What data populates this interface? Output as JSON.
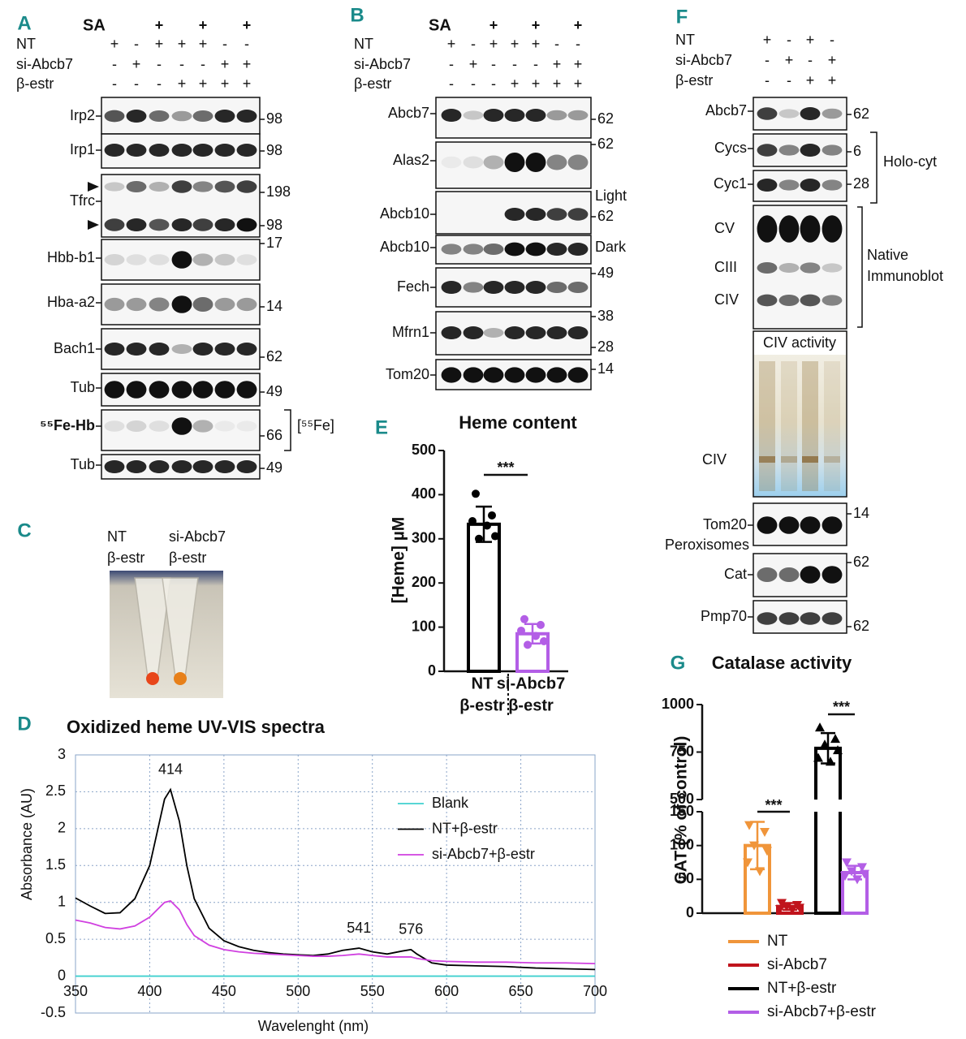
{
  "panels": {
    "A": {
      "letter": "A",
      "conditions": [
        {
          "label": "SA",
          "marks": [
            null,
            null,
            "+",
            null,
            "+",
            null,
            "+"
          ]
        },
        {
          "label": "NT",
          "marks": [
            "+",
            "-",
            "+",
            "+",
            "+",
            "-",
            "-"
          ]
        },
        {
          "label": "si-Abcb7",
          "marks": [
            "-",
            "+",
            "-",
            "-",
            "-",
            "+",
            "+"
          ]
        },
        {
          "label": "β-estr",
          "marks": [
            "-",
            "-",
            "-",
            "+",
            "+",
            "+",
            "+"
          ]
        }
      ],
      "blots": [
        {
          "label": "Irp2",
          "mw": [
            "98"
          ]
        },
        {
          "label": "Irp1",
          "mw": [
            "98"
          ]
        },
        {
          "label": "Tfrc",
          "mw": [
            "198",
            "98"
          ]
        },
        {
          "label": "Hbb-b1",
          "mw": [
            "17"
          ]
        },
        {
          "label": "Hba-a2",
          "mw": [
            "14"
          ]
        },
        {
          "label": "Bach1",
          "mw": [
            "62"
          ]
        },
        {
          "label": "Tub",
          "mw": [
            "49"
          ]
        },
        {
          "label": "⁵⁵Fe-Hb",
          "mw": [
            "66"
          ]
        },
        {
          "label": "Tub",
          "mw": [
            "49"
          ]
        }
      ],
      "bracket_label": "[⁵⁵Fe]"
    },
    "B": {
      "letter": "B",
      "conditions": [
        {
          "label": "SA",
          "marks": [
            null,
            null,
            "+",
            null,
            "+",
            null,
            "+"
          ]
        },
        {
          "label": "NT",
          "marks": [
            "+",
            "-",
            "+",
            "+",
            "+",
            "-",
            "-"
          ]
        },
        {
          "label": "si-Abcb7",
          "marks": [
            "-",
            "+",
            "-",
            "-",
            "-",
            "+",
            "+"
          ]
        },
        {
          "label": "β-estr",
          "marks": [
            "-",
            "-",
            "-",
            "+",
            "+",
            "+",
            "+"
          ]
        }
      ],
      "blots": [
        {
          "label": "Abcb7",
          "mw": [
            "62"
          ]
        },
        {
          "label": "Alas2",
          "mw": [
            "62"
          ]
        },
        {
          "label": "Abcb10",
          "note": "Light",
          "mw": [
            "62"
          ]
        },
        {
          "label": "Abcb10",
          "note": "Dark",
          "mw": []
        },
        {
          "label": "Fech",
          "mw": [
            "49"
          ]
        },
        {
          "label": "Mfrn1",
          "mw": [
            "38",
            "28"
          ]
        },
        {
          "label": "Tom20",
          "mw": [
            "14"
          ]
        }
      ]
    },
    "C": {
      "letter": "C",
      "labels": [
        [
          "NT",
          "β-estr"
        ],
        [
          "si-Abcb7",
          "β-estr"
        ]
      ]
    },
    "F": {
      "letter": "F",
      "conditions": [
        {
          "label": "NT",
          "marks": [
            "+",
            "-",
            "+",
            "-"
          ]
        },
        {
          "label": "si-Abcb7",
          "marks": [
            "-",
            "+",
            "-",
            "+"
          ]
        },
        {
          "label": "β-estr",
          "marks": [
            "-",
            "-",
            "+",
            "+"
          ]
        }
      ],
      "blots": [
        {
          "label": "Abcb7",
          "mw": [
            "62"
          ]
        },
        {
          "label": "Cycs",
          "mw": [
            "6"
          ]
        },
        {
          "label": "Cyc1",
          "mw": [
            "28"
          ]
        },
        {
          "label": "Tom20",
          "mw": [
            "14"
          ]
        },
        {
          "label": "Cat",
          "mw": [
            "62"
          ]
        },
        {
          "label": "Pmp70",
          "mw": [
            "62"
          ]
        }
      ],
      "native_labels": [
        "CV",
        "CIII",
        "CIV"
      ],
      "activity_title": "CIV activity",
      "activity_label": "CIV",
      "holo_label": "Holo-cyt",
      "native_group": [
        "Native",
        "Immunoblot"
      ],
      "perox_label": "Peroxisomes"
    }
  },
  "chart_data": [
    {
      "type": "bar",
      "panel_letter": "E",
      "title": "Heme content",
      "y_label": "[Heme] µM",
      "categories": [
        [
          "NT",
          "β-estr"
        ],
        [
          "si-Abcb7",
          "β-estr"
        ]
      ],
      "values": [
        333,
        85
      ],
      "errors": [
        40,
        22
      ],
      "colors": [
        "#000000",
        "#b35ee6"
      ],
      "points": [
        [
          402,
          353,
          340,
          330,
          306,
          300
        ],
        [
          118,
          105,
          92,
          80,
          68,
          60
        ]
      ],
      "ylim": [
        0,
        500
      ],
      "yticks": [
        0,
        100,
        200,
        300,
        400,
        500
      ],
      "annotations": [
        {
          "text": "***",
          "between": [
            0,
            1
          ]
        }
      ]
    },
    {
      "type": "line",
      "panel_letter": "D",
      "title": "Oxidized heme UV-VIS spectra",
      "x_label": "Wavelenght (nm)",
      "y_label": "Absorbance (AU)",
      "x": [
        350,
        360,
        370,
        380,
        390,
        400,
        405,
        410,
        414,
        420,
        425,
        430,
        440,
        450,
        460,
        470,
        480,
        490,
        500,
        510,
        520,
        530,
        541,
        550,
        560,
        570,
        576,
        580,
        590,
        600,
        620,
        640,
        660,
        680,
        700
      ],
      "series": [
        {
          "name": "Blank",
          "color": "#3fd0cf",
          "values": [
            0,
            0,
            0,
            0,
            0,
            0,
            0,
            0,
            0,
            0,
            0,
            0,
            0,
            0,
            0,
            0,
            0,
            0,
            0,
            0,
            0,
            0,
            0,
            0,
            0,
            0,
            0,
            0,
            0,
            0,
            0,
            0,
            0,
            0,
            0
          ]
        },
        {
          "name": "NT+β-estr",
          "color": "#000000",
          "values": [
            1.06,
            0.95,
            0.85,
            0.86,
            1.05,
            1.5,
            1.95,
            2.4,
            2.53,
            2.1,
            1.5,
            1.05,
            0.65,
            0.48,
            0.4,
            0.35,
            0.32,
            0.3,
            0.29,
            0.28,
            0.3,
            0.35,
            0.38,
            0.33,
            0.3,
            0.34,
            0.36,
            0.3,
            0.18,
            0.15,
            0.14,
            0.13,
            0.11,
            0.1,
            0.09
          ]
        },
        {
          "name": "si-Abcb7+β-estr",
          "color": "#d040e0",
          "values": [
            0.76,
            0.72,
            0.66,
            0.64,
            0.68,
            0.8,
            0.9,
            1.0,
            1.02,
            0.9,
            0.7,
            0.55,
            0.42,
            0.36,
            0.33,
            0.31,
            0.3,
            0.29,
            0.28,
            0.27,
            0.27,
            0.28,
            0.3,
            0.28,
            0.26,
            0.26,
            0.26,
            0.24,
            0.21,
            0.2,
            0.19,
            0.19,
            0.18,
            0.18,
            0.17
          ]
        }
      ],
      "xlim": [
        350,
        700
      ],
      "xticks": [
        350,
        400,
        450,
        500,
        550,
        600,
        650,
        700
      ],
      "ylim": [
        -0.5,
        3
      ],
      "yticks": [
        -0.5,
        0,
        0.5,
        1,
        1.5,
        2,
        2.5,
        3
      ],
      "grid": true,
      "legend": "center right",
      "annotations": [
        {
          "text": "414",
          "x": 414,
          "y": 2.53
        },
        {
          "text": "541",
          "x": 541,
          "y": 0.38
        },
        {
          "text": "576",
          "x": 576,
          "y": 0.36
        }
      ]
    },
    {
      "type": "broken-bar",
      "panel_letter": "G",
      "title": "Catalase activity",
      "y_label": "CAT (% of control)",
      "series": [
        {
          "name": "NT",
          "color": "#f0953a",
          "marker": "triangle-down",
          "values": [
            100
          ],
          "errors": [
            35
          ],
          "points": [
            130,
            120,
            100,
            92,
            75,
            62
          ]
        },
        {
          "name": "si-Abcb7",
          "color": "#c0141c",
          "marker": "triangle-down",
          "values": [
            10
          ],
          "errors": [
            5
          ],
          "points": [
            15,
            12,
            10,
            8,
            6,
            5
          ]
        },
        {
          "name": "NT+β-estr",
          "color": "#000000",
          "marker": "triangle-up",
          "values": [
            770
          ],
          "errors": [
            80
          ],
          "points": [
            880,
            820,
            790,
            760,
            720,
            700
          ]
        },
        {
          "name": "si-Abcb7+β-estr",
          "color": "#b35ee6",
          "marker": "triangle-down",
          "values": [
            60
          ],
          "errors": [
            10
          ],
          "points": [
            75,
            68,
            62,
            58,
            55,
            50
          ]
        }
      ],
      "ylim": [
        0,
        1000
      ],
      "yticks": [
        0,
        50,
        100,
        150,
        500,
        750,
        1000
      ],
      "axis_break": [
        150,
        500
      ],
      "annotations": [
        {
          "text": "***",
          "between": [
            0,
            1
          ]
        },
        {
          "text": "***",
          "between": [
            2,
            3
          ]
        }
      ]
    }
  ]
}
